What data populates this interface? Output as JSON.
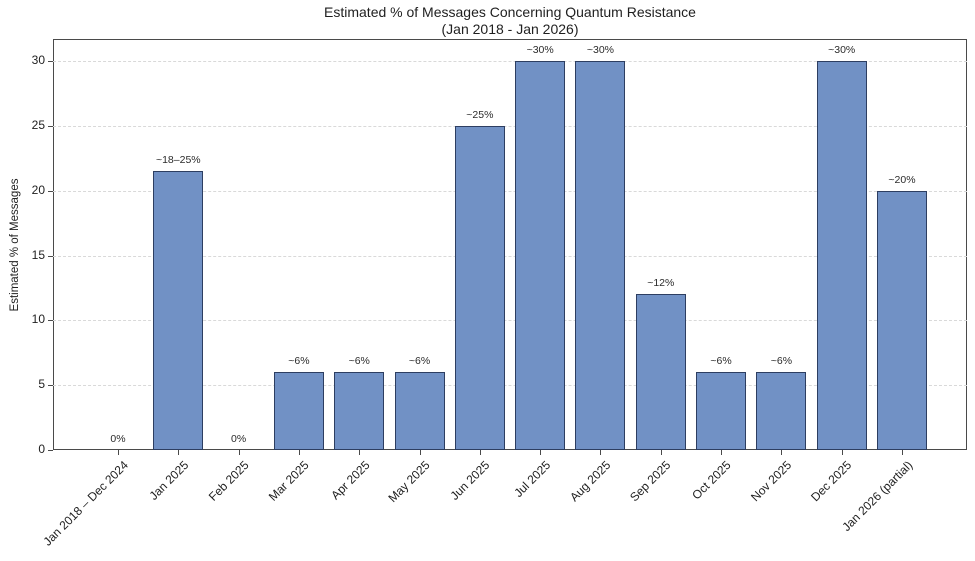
{
  "title": {
    "line1": "Estimated % of Messages Concerning Quantum Resistance",
    "line2": "(Jan 2018 - Jan 2026)"
  },
  "chart_data": {
    "type": "bar",
    "title": "Estimated % of Messages Concerning Quantum Resistance (Jan 2018 - Jan 2026)",
    "xlabel": "",
    "ylabel": "Estimated % of Messages",
    "ylim": [
      0,
      31.7
    ],
    "yticks": [
      0,
      5,
      10,
      15,
      20,
      25,
      30
    ],
    "grid": "horizontal-dashed",
    "legend": "none",
    "categories": [
      "Jan 2018 – Dec 2024",
      "Jan 2025",
      "Feb 2025",
      "Mar 2025",
      "Apr 2025",
      "May 2025",
      "Jun 2025",
      "Jul 2025",
      "Aug 2025",
      "Sep 2025",
      "Oct 2025",
      "Nov 2025",
      "Dec 2025",
      "Jan 2026 (partial)"
    ],
    "values": [
      0,
      21.5,
      0,
      6,
      6,
      6,
      25,
      30,
      30,
      12,
      6,
      6,
      30,
      20
    ],
    "bar_labels": [
      "0%",
      "~18–25%",
      "0%",
      "~6%",
      "~6%",
      "~6%",
      "~25%",
      "~30%",
      "~30%",
      "~12%",
      "~6%",
      "~6%",
      "~30%",
      "~20%"
    ],
    "bar_color": "#7191c5",
    "bar_edge_color": "#2d3e61",
    "gridline_color": "#d9d9d9",
    "spine_color": "#4a4a4a",
    "text_color": "#1f1f1f"
  }
}
